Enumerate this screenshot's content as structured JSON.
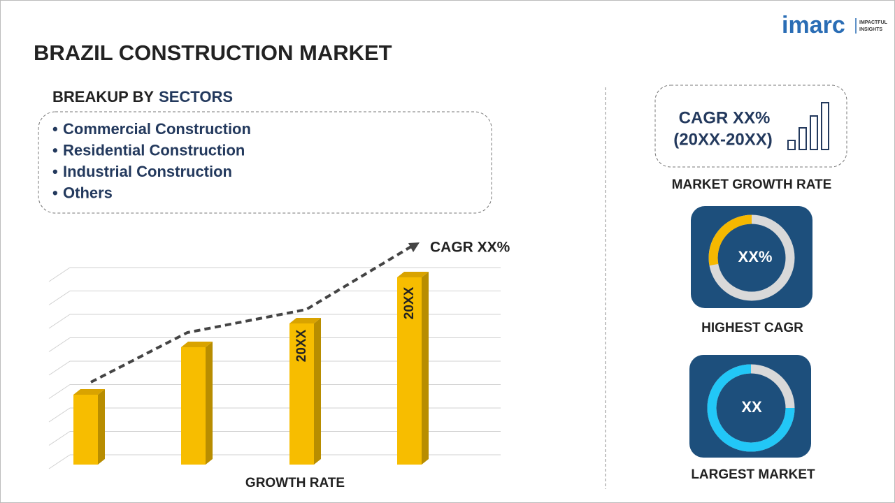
{
  "logo": {
    "brand": "imarc",
    "tagline": [
      "IMPACTFUL",
      "INSIGHTS"
    ]
  },
  "header": {
    "title": "BRAZIL CONSTRUCTION MARKET"
  },
  "breakup": {
    "heading": "BREAKUP BY",
    "heading_highlight": "SECTORS",
    "items": [
      "Commercial Construction",
      "Residential Construction",
      "Industrial Construction",
      "Others"
    ]
  },
  "growth_chart": {
    "cagr_label": "CAGR XX%",
    "bar_labels": [
      "20XX",
      "20XX"
    ],
    "caption": "GROWTH RATE"
  },
  "market_growth": {
    "cagr": "CAGR XX%",
    "period": "(20XX-20XX)",
    "caption": "MARKET GROWTH RATE"
  },
  "highest_cagr": {
    "value": "XX%",
    "caption": "HIGHEST CAGR"
  },
  "largest_market": {
    "value": "XX",
    "caption": "LARGEST MARKET"
  }
}
